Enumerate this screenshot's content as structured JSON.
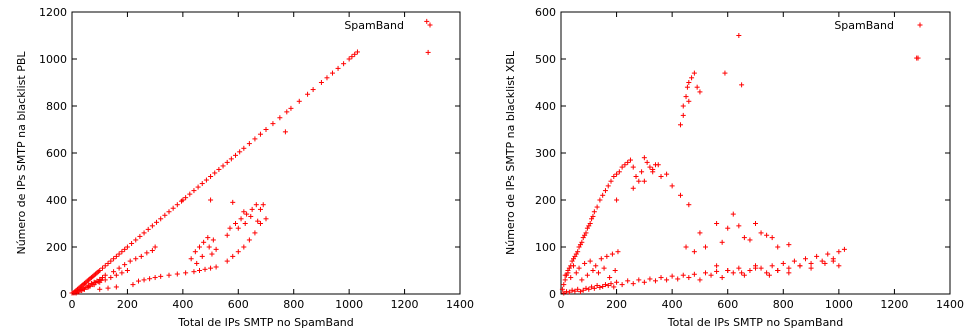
{
  "chart_data": [
    {
      "type": "scatter",
      "title": "",
      "xlabel": "Total de IPs SMTP no SpamBand",
      "ylabel": "Número de IPs SMTP na blacklist PBL",
      "xlim": [
        0,
        1400
      ],
      "ylim": [
        0,
        1200
      ],
      "xticks": [
        "0",
        "200",
        "400",
        "600",
        "800",
        "1000",
        "1200",
        "1400"
      ],
      "yticks": [
        "0",
        "200",
        "400",
        "600",
        "800",
        "1000",
        "1200"
      ],
      "grid": false,
      "legend_position": "top-right",
      "marker": "+",
      "color": "#ff0000",
      "series": [
        {
          "name": "SpamBand",
          "x": [
            0,
            5,
            10,
            15,
            20,
            25,
            30,
            35,
            40,
            45,
            50,
            55,
            60,
            65,
            70,
            75,
            80,
            85,
            90,
            95,
            100,
            110,
            120,
            130,
            140,
            150,
            160,
            170,
            180,
            190,
            200,
            215,
            230,
            245,
            260,
            275,
            290,
            305,
            320,
            335,
            350,
            365,
            380,
            395,
            410,
            425,
            440,
            455,
            470,
            485,
            500,
            515,
            530,
            545,
            560,
            575,
            590,
            605,
            620,
            640,
            660,
            680,
            700,
            725,
            750,
            775,
            790,
            820,
            850,
            870,
            900,
            920,
            940,
            960,
            980,
            1000,
            1010,
            1020,
            1030,
            1280,
            10,
            20,
            30,
            40,
            50,
            60,
            70,
            80,
            90,
            100,
            110,
            120,
            15,
            25,
            35,
            45,
            55,
            65,
            75,
            85,
            95,
            105,
            40,
            60,
            80,
            100,
            120,
            140,
            160,
            180,
            200,
            150,
            170,
            190,
            210,
            230,
            250,
            270,
            290,
            300,
            100,
            130,
            160,
            220,
            240,
            260,
            280,
            300,
            320,
            350,
            380,
            410,
            440,
            460,
            480,
            500,
            520,
            560,
            580,
            600,
            620,
            640,
            660,
            680,
            700,
            430,
            445,
            460,
            475,
            490,
            505,
            520,
            450,
            470,
            495,
            510,
            560,
            570,
            590,
            610,
            630,
            650,
            665,
            680,
            600,
            625,
            645,
            670,
            770,
            580,
            620,
            690,
            400,
            500
          ],
          "y": [
            0,
            5,
            10,
            15,
            20,
            25,
            30,
            35,
            40,
            45,
            50,
            55,
            60,
            65,
            70,
            75,
            80,
            85,
            90,
            95,
            100,
            110,
            120,
            130,
            140,
            150,
            160,
            170,
            180,
            190,
            200,
            215,
            230,
            245,
            260,
            275,
            290,
            305,
            320,
            335,
            350,
            365,
            380,
            395,
            410,
            425,
            440,
            455,
            470,
            485,
            500,
            515,
            530,
            545,
            560,
            575,
            590,
            605,
            620,
            640,
            660,
            680,
            700,
            725,
            750,
            775,
            790,
            820,
            850,
            870,
            900,
            920,
            940,
            960,
            980,
            1000,
            1010,
            1020,
            1030,
            1160,
            5,
            10,
            18,
            25,
            30,
            38,
            45,
            50,
            55,
            62,
            70,
            80,
            3,
            8,
            15,
            20,
            28,
            33,
            40,
            48,
            52,
            58,
            20,
            30,
            40,
            50,
            60,
            70,
            80,
            90,
            100,
            95,
            110,
            125,
            140,
            150,
            160,
            175,
            185,
            200,
            20,
            25,
            30,
            40,
            55,
            60,
            65,
            70,
            75,
            80,
            85,
            90,
            95,
            100,
            105,
            110,
            115,
            140,
            160,
            180,
            200,
            230,
            260,
            300,
            320,
            150,
            180,
            200,
            220,
            240,
            170,
            190,
            130,
            160,
            200,
            230,
            250,
            280,
            300,
            320,
            340,
            360,
            380,
            360,
            280,
            300,
            330,
            310,
            690,
            390,
            350,
            380,
            400,
            400
          ],
          "points_note": "estimated"
        }
      ],
      "outlier": {
        "x": 1285,
        "y": 1028
      }
    },
    {
      "type": "scatter",
      "title": "",
      "xlabel": "Total de IPs SMTP no SpamBand",
      "ylabel": "Número de IPs SMTP na blacklist XBL",
      "xlim": [
        0,
        1400
      ],
      "ylim": [
        0,
        600
      ],
      "xticks": [
        "0",
        "200",
        "400",
        "600",
        "800",
        "1000",
        "1200",
        "1400"
      ],
      "yticks": [
        "0",
        "100",
        "200",
        "300",
        "400",
        "500",
        "600"
      ],
      "grid": false,
      "legend_position": "top-right",
      "marker": "+",
      "color": "#ff0000",
      "series": [
        {
          "name": "SpamBand",
          "x": [
            5,
            10,
            15,
            20,
            25,
            30,
            35,
            40,
            45,
            50,
            55,
            60,
            65,
            70,
            75,
            80,
            85,
            90,
            95,
            100,
            105,
            110,
            115,
            120,
            130,
            140,
            150,
            160,
            170,
            180,
            190,
            200,
            210,
            220,
            230,
            240,
            250,
            260,
            270,
            280,
            290,
            300,
            310,
            320,
            330,
            340,
            10,
            20,
            30,
            40,
            50,
            60,
            70,
            80,
            90,
            100,
            110,
            120,
            130,
            140,
            150,
            160,
            170,
            180,
            190,
            200,
            220,
            240,
            260,
            280,
            300,
            320,
            340,
            360,
            380,
            400,
            420,
            440,
            460,
            480,
            500,
            520,
            540,
            560,
            580,
            600,
            620,
            640,
            660,
            680,
            700,
            720,
            740,
            760,
            780,
            800,
            820,
            840,
            860,
            880,
            900,
            920,
            940,
            960,
            980,
            1000,
            1020,
            15,
            25,
            35,
            45,
            55,
            65,
            75,
            85,
            95,
            105,
            115,
            125,
            135,
            145,
            155,
            165,
            175,
            185,
            195,
            205,
            430,
            440,
            450,
            455,
            460,
            470,
            480,
            490,
            500,
            440,
            460,
            590,
            640,
            650,
            450,
            480,
            500,
            520,
            560,
            580,
            600,
            620,
            640,
            660,
            680,
            700,
            720,
            740,
            760,
            780,
            820,
            200,
            260,
            300,
            330,
            350,
            360,
            380,
            400,
            430,
            460,
            560,
            600,
            650,
            700,
            750,
            780,
            820,
            860,
            900,
            950,
            980,
            1000,
            1280
          ],
          "y": [
            10,
            20,
            30,
            40,
            45,
            55,
            60,
            70,
            75,
            80,
            85,
            90,
            100,
            105,
            110,
            120,
            125,
            130,
            140,
            145,
            150,
            160,
            165,
            175,
            185,
            200,
            210,
            220,
            230,
            240,
            250,
            255,
            260,
            270,
            275,
            280,
            285,
            270,
            250,
            240,
            260,
            290,
            280,
            270,
            265,
            275,
            2,
            5,
            4,
            8,
            6,
            10,
            5,
            8,
            12,
            10,
            15,
            12,
            18,
            14,
            16,
            20,
            18,
            22,
            15,
            25,
            20,
            28,
            22,
            30,
            25,
            32,
            28,
            35,
            30,
            38,
            32,
            40,
            35,
            42,
            30,
            45,
            40,
            48,
            35,
            50,
            45,
            55,
            40,
            50,
            60,
            55,
            45,
            60,
            50,
            65,
            55,
            70,
            60,
            75,
            65,
            80,
            70,
            85,
            75,
            90,
            95,
            40,
            50,
            35,
            60,
            45,
            55,
            30,
            65,
            40,
            70,
            50,
            60,
            45,
            75,
            55,
            80,
            35,
            85,
            50,
            90,
            360,
            400,
            420,
            440,
            450,
            460,
            470,
            440,
            430,
            380,
            410,
            470,
            550,
            445,
            100,
            90,
            130,
            100,
            150,
            110,
            140,
            170,
            145,
            120,
            115,
            150,
            130,
            125,
            120,
            100,
            105,
            200,
            225,
            240,
            260,
            275,
            250,
            255,
            230,
            210,
            190,
            60,
            50,
            45,
            55,
            40,
            50,
            45,
            60,
            55,
            65,
            70,
            60,
            502
          ],
          "points_note": "estimated"
        }
      ],
      "outlier": {
        "x": 1285,
        "y": 502
      }
    }
  ]
}
